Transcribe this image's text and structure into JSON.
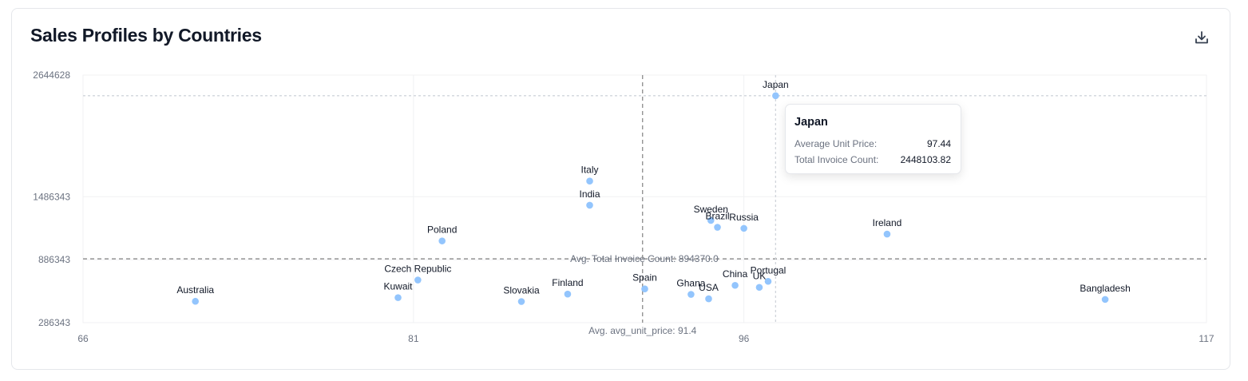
{
  "card": {
    "title": "Sales Profiles by Countries",
    "download_icon": "download-icon"
  },
  "chart_data": {
    "type": "scatter",
    "title": "Sales Profiles by Countries",
    "xlabel": "Average Unit Price",
    "ylabel": "Total Invoice Count",
    "xlim": [
      66,
      117
    ],
    "ylim": [
      286343,
      2644628
    ],
    "x_ticks": [
      "66",
      "81",
      "96",
      "117"
    ],
    "y_ticks": [
      "286343",
      "886343",
      "1486343",
      "2644628"
    ],
    "grid": true,
    "point_color": "#93c5fd",
    "reference_lines": [
      {
        "axis": "y",
        "value": 894370.0,
        "label": "Avg. Total Invoice Count: 894370.0"
      },
      {
        "axis": "x",
        "value": 91.4,
        "label": "Avg. avg_unit_price: 91.4"
      },
      {
        "axis": "y",
        "value": 2448103.82,
        "label": "",
        "style": "crosshair"
      },
      {
        "axis": "x",
        "value": 97.44,
        "label": "",
        "style": "crosshair"
      }
    ],
    "points": [
      {
        "label": "Japan",
        "x": 97.44,
        "y": 2448103.82
      },
      {
        "label": "Italy",
        "x": 89.0,
        "y": 1635000
      },
      {
        "label": "India",
        "x": 89.0,
        "y": 1405000
      },
      {
        "label": "Sweden",
        "x": 94.5,
        "y": 1260000
      },
      {
        "label": "Brazil",
        "x": 94.8,
        "y": 1195000
      },
      {
        "label": "Russia",
        "x": 96.0,
        "y": 1185000
      },
      {
        "label": "Ireland",
        "x": 102.5,
        "y": 1130000
      },
      {
        "label": "Poland",
        "x": 82.3,
        "y": 1065000
      },
      {
        "label": "Czech Republic",
        "x": 81.2,
        "y": 693000
      },
      {
        "label": "Portugal",
        "x": 97.1,
        "y": 680000
      },
      {
        "label": "China",
        "x": 95.6,
        "y": 642000
      },
      {
        "label": "UK",
        "x": 96.7,
        "y": 623000
      },
      {
        "label": "Spain",
        "x": 91.5,
        "y": 608000
      },
      {
        "label": "Ghana",
        "x": 93.6,
        "y": 556000
      },
      {
        "label": "Finland",
        "x": 88.0,
        "y": 559000
      },
      {
        "label": "Kuwait",
        "x": 80.3,
        "y": 525000
      },
      {
        "label": "USA",
        "x": 94.4,
        "y": 514000
      },
      {
        "label": "Bangladesh",
        "x": 112.4,
        "y": 508000
      },
      {
        "label": "Australia",
        "x": 71.1,
        "y": 490000
      },
      {
        "label": "Slovakia",
        "x": 85.9,
        "y": 488000
      }
    ]
  },
  "tooltip": {
    "title": "Japan",
    "rows": [
      {
        "key": "Average Unit Price:",
        "value": "97.44"
      },
      {
        "key": "Total Invoice Count:",
        "value": "2448103.82"
      }
    ]
  }
}
